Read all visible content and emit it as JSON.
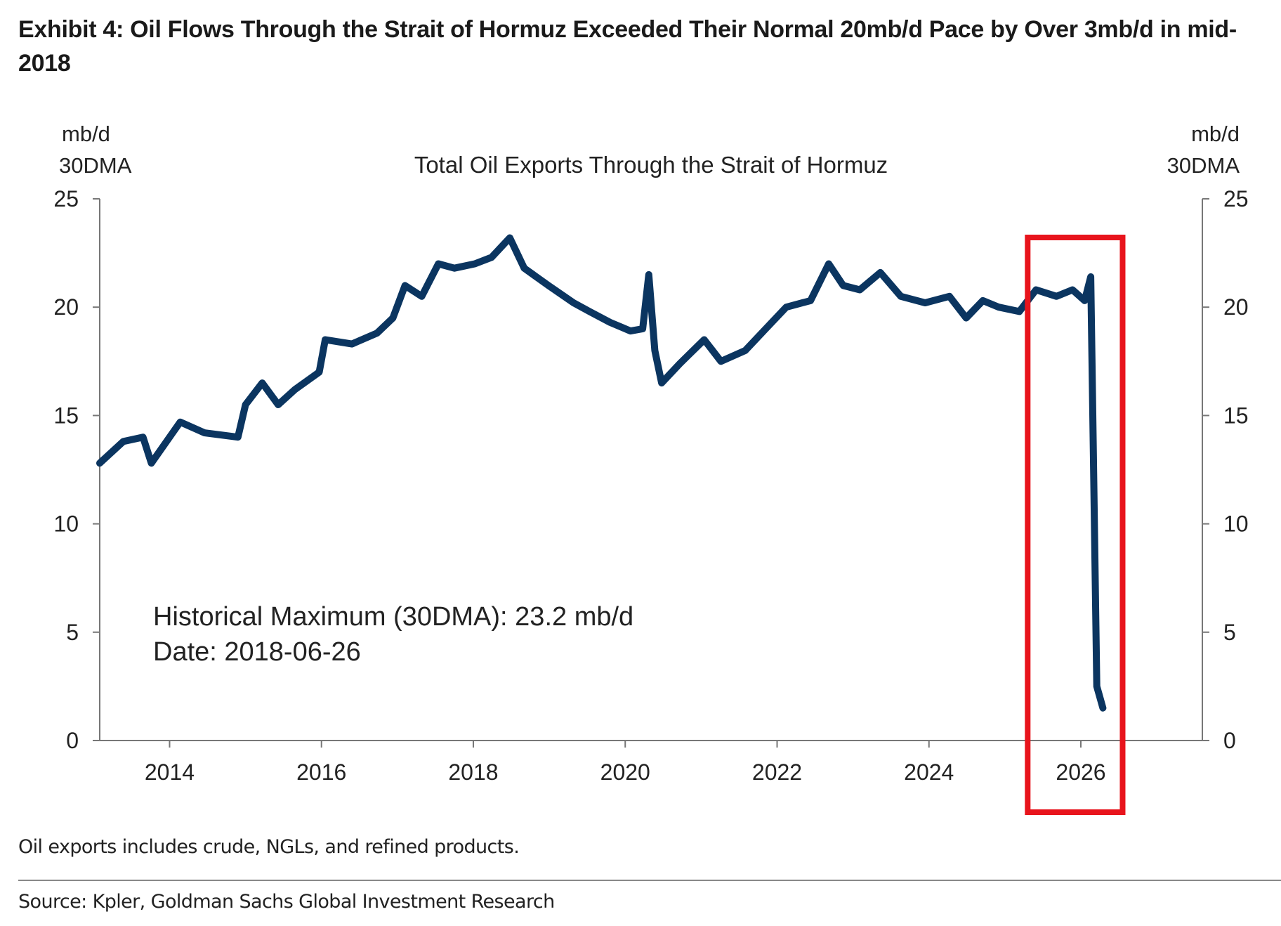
{
  "title": "Exhibit 4: Oil Flows Through the Strait of Hormuz Exceeded Their Normal 20mb/d Pace by Over 3mb/d in mid-2018",
  "footnote": "Oil exports includes crude, NGLs, and refined products.",
  "source": "Source: Kpler, Goldman Sachs Global Investment Research",
  "colors": {
    "series": "#0b3560",
    "highlight_box": "#e8141c",
    "axis": "#777777"
  },
  "chart_data": {
    "type": "line",
    "title": "Total Oil Exports Through the Strait of Hormuz",
    "ylabel_left": [
      "mb/d",
      "30DMA"
    ],
    "ylabel_right": [
      "mb/d",
      "30DMA"
    ],
    "ylim": [
      0,
      25
    ],
    "yticks": [
      "0",
      "5",
      "10",
      "15",
      "20",
      "25"
    ],
    "xlim": [
      2013.08,
      2027.6
    ],
    "xticks": [
      "2014",
      "2016",
      "2018",
      "2020",
      "2022",
      "2024",
      "2026"
    ],
    "grid": false,
    "annotation": [
      "Historical Maximum (30DMA): 23.2 mb/d",
      "Date: 2018-06-26"
    ],
    "highlight": {
      "x_range": [
        2025.3,
        2026.55
      ],
      "shape": "red rectangle"
    },
    "x": [
      2013.08,
      2013.39,
      2013.65,
      2013.76,
      2014.14,
      2014.46,
      2014.9,
      2015.0,
      2015.22,
      2015.43,
      2015.65,
      2015.97,
      2016.05,
      2016.4,
      2016.73,
      2016.94,
      2017.1,
      2017.32,
      2017.54,
      2017.75,
      2018.02,
      2018.24,
      2018.48,
      2018.67,
      2018.99,
      2019.32,
      2019.53,
      2019.8,
      2020.07,
      2020.23,
      2020.31,
      2020.39,
      2020.48,
      2020.72,
      2021.04,
      2021.26,
      2021.58,
      2021.85,
      2022.12,
      2022.44,
      2022.68,
      2022.87,
      2023.09,
      2023.36,
      2023.63,
      2023.95,
      2024.27,
      2024.49,
      2024.71,
      2024.92,
      2025.19,
      2025.41,
      2025.68,
      2025.89,
      2026.05,
      2026.13,
      2026.17,
      2026.21,
      2026.29
    ],
    "values": [
      12.8,
      13.8,
      14.0,
      12.8,
      14.7,
      14.2,
      14.0,
      15.5,
      16.5,
      15.5,
      16.2,
      17.0,
      18.5,
      18.3,
      18.8,
      19.5,
      21.0,
      20.5,
      22.0,
      21.8,
      22.0,
      22.3,
      23.2,
      21.8,
      21.0,
      20.2,
      19.8,
      19.3,
      18.9,
      19.0,
      21.5,
      18.0,
      16.5,
      17.4,
      18.5,
      17.5,
      18.0,
      19.0,
      20.0,
      20.3,
      22.0,
      21.0,
      20.8,
      21.6,
      20.5,
      20.2,
      20.5,
      19.5,
      20.3,
      20.0,
      19.8,
      20.8,
      20.5,
      20.8,
      20.3,
      21.4,
      12.0,
      2.5,
      1.5
    ]
  }
}
